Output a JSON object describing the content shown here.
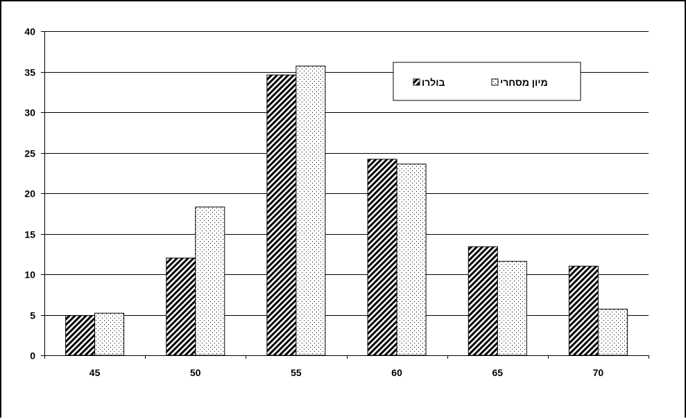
{
  "chart_data": {
    "type": "bar",
    "title": "",
    "xlabel": "",
    "ylabel": "",
    "categories": [
      "45",
      "50",
      "55",
      "60",
      "65",
      "70"
    ],
    "ylim": [
      0,
      40
    ],
    "yticks": [
      "0",
      "5",
      "10",
      "15",
      "20",
      "25",
      "30",
      "35",
      "40"
    ],
    "grid": true,
    "legend_position": "top-right",
    "series": [
      {
        "name": "בולרו",
        "values": [
          4.9,
          12.0,
          34.6,
          24.2,
          13.4,
          11.0
        ],
        "pattern": "diagonal-hatch",
        "color": "#000000"
      },
      {
        "name": "מיון מסחרי",
        "values": [
          5.2,
          18.3,
          35.7,
          23.6,
          11.6,
          5.7
        ],
        "pattern": "dots",
        "color": "#000000"
      }
    ]
  }
}
